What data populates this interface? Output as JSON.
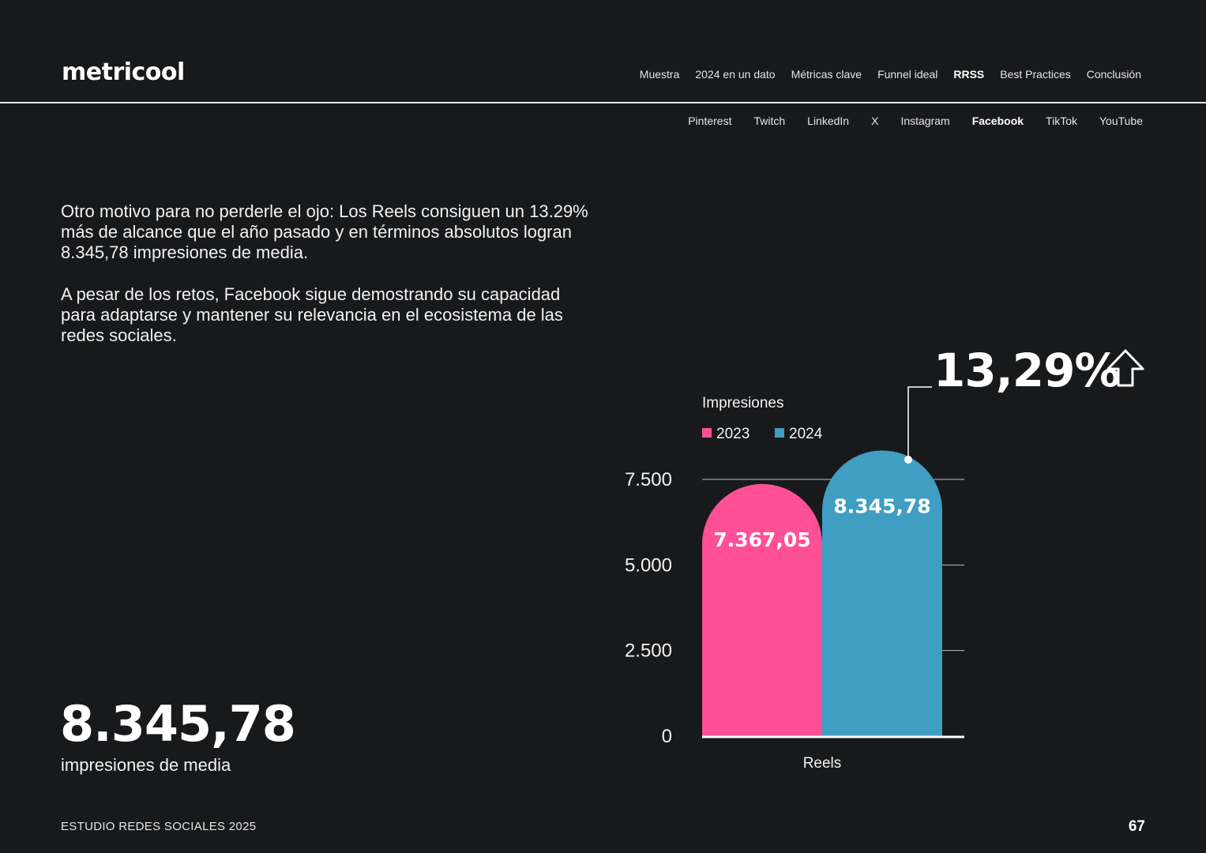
{
  "brand": {
    "logo_text": "metricool"
  },
  "nav": {
    "items": [
      {
        "label": "Muestra",
        "active": false
      },
      {
        "label": "2024 en un dato",
        "active": false
      },
      {
        "label": "Métricas clave",
        "active": false
      },
      {
        "label": "Funnel ideal",
        "active": false
      },
      {
        "label": "RRSS",
        "active": true
      },
      {
        "label": "Best Practices",
        "active": false
      },
      {
        "label": "Conclusión",
        "active": false
      }
    ]
  },
  "subnav": {
    "items": [
      {
        "label": "Pinterest",
        "active": false
      },
      {
        "label": "Twitch",
        "active": false
      },
      {
        "label": "LinkedIn",
        "active": false
      },
      {
        "label": "X",
        "active": false
      },
      {
        "label": "Instagram",
        "active": false
      },
      {
        "label": "Facebook",
        "active": true
      },
      {
        "label": "TikTok",
        "active": false
      },
      {
        "label": "YouTube",
        "active": false
      }
    ]
  },
  "content": {
    "paragraph_1": "Otro motivo para no perderle el ojo: Los Reels consiguen un 13.29% más de alcance que el año pasado y en términos absolutos logran 8.345,78 impresiones de media.",
    "paragraph_2": "A pesar de los retos, Facebook sigue demostrando su capacidad para adaptarse y mantener su relevancia en el ecosistema de las redes sociales.",
    "big_stat_value": "8.345,78",
    "big_stat_label": "impresiones de media"
  },
  "footer": {
    "left": "ESTUDIO REDES SOCIALES 2025",
    "page_number": "67"
  },
  "chart_data": {
    "type": "bar",
    "title": "Impresiones",
    "categories": [
      "Reels"
    ],
    "series": [
      {
        "name": "2023",
        "values": [
          7367.05
        ],
        "label": "7.367,05",
        "color": "#ff4f96"
      },
      {
        "name": "2024",
        "values": [
          8345.78
        ],
        "label": "8.345,78",
        "color": "#3f9ec2"
      }
    ],
    "y_ticks": [
      0,
      2500,
      5000,
      7500
    ],
    "y_tick_labels": [
      "0",
      "2.500",
      "5.000",
      "7.500"
    ],
    "ylim": [
      0,
      7500
    ],
    "legend": "top-left",
    "grid": true,
    "annotation": {
      "text": "13,29%",
      "icon": "arrow-up-icon",
      "target_series": "2024"
    }
  }
}
